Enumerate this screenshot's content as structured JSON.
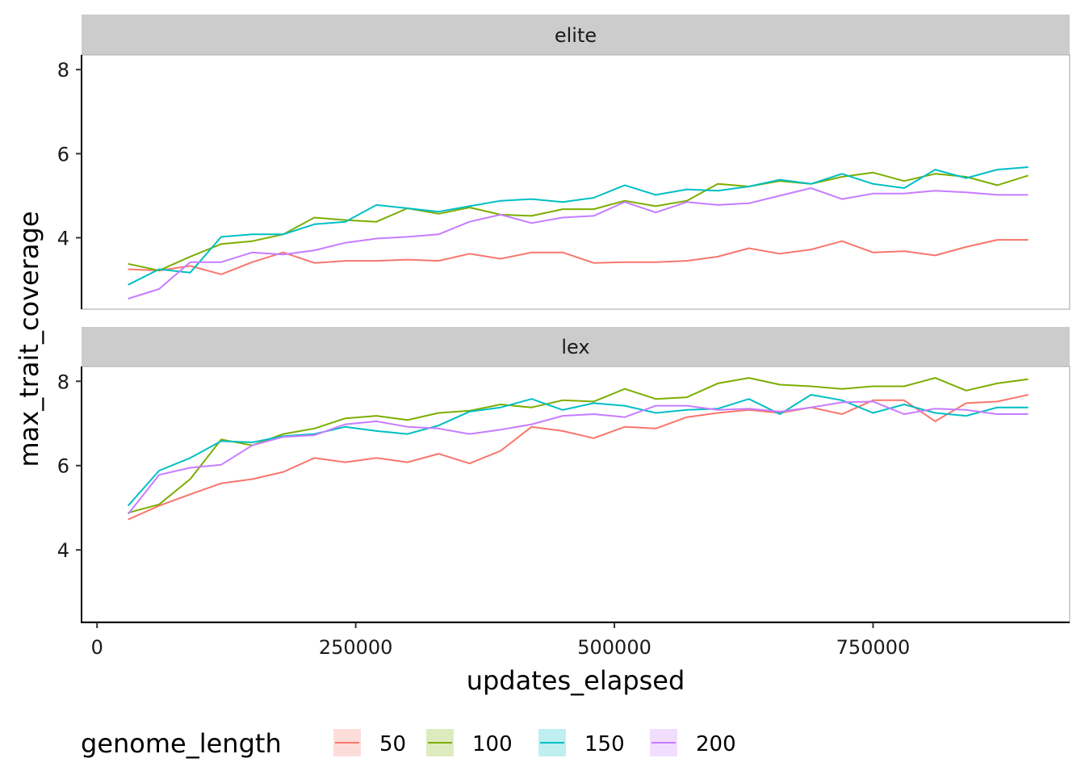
{
  "chart_data": {
    "type": "line",
    "xlabel": "updates_elapsed",
    "ylabel": "max_trait_coverage",
    "xlim": [
      -15000,
      940000
    ],
    "ylim": [
      2.3,
      8.35
    ],
    "x_ticks": [
      0,
      250000,
      500000,
      750000
    ],
    "y_ticks": [
      4,
      6,
      8
    ],
    "x": [
      30000,
      60000,
      90000,
      120000,
      150000,
      180000,
      210000,
      240000,
      270000,
      300000,
      330000,
      360000,
      390000,
      420000,
      450000,
      480000,
      510000,
      540000,
      570000,
      600000,
      630000,
      660000,
      690000,
      720000,
      750000,
      780000,
      810000,
      840000,
      870000,
      900000
    ],
    "legend": {
      "title": "genome_length",
      "position": "bottom",
      "entries": [
        {
          "label": "50",
          "color": "#F8766D"
        },
        {
          "label": "100",
          "color": "#7CAE00"
        },
        {
          "label": "150",
          "color": "#00BFC4"
        },
        {
          "label": "200",
          "color": "#C77CFF"
        }
      ]
    },
    "panels": [
      {
        "label": "elite",
        "series": [
          {
            "name": "50",
            "color": "#F8766D",
            "values": [
              3.25,
              3.22,
              3.33,
              3.13,
              3.42,
              3.65,
              3.4,
              3.45,
              3.45,
              3.48,
              3.45,
              3.62,
              3.5,
              3.65,
              3.65,
              3.4,
              3.42,
              3.42,
              3.45,
              3.55,
              3.75,
              3.62,
              3.72,
              3.92,
              3.65,
              3.68,
              3.58,
              3.78,
              3.95,
              3.95
            ]
          },
          {
            "name": "100",
            "color": "#7CAE00",
            "values": [
              3.38,
              3.22,
              3.55,
              3.85,
              3.92,
              4.08,
              4.48,
              4.42,
              4.38,
              4.7,
              4.57,
              4.72,
              4.55,
              4.52,
              4.68,
              4.68,
              4.88,
              4.75,
              4.88,
              5.28,
              5.22,
              5.35,
              5.28,
              5.45,
              5.55,
              5.35,
              5.52,
              5.45,
              5.25,
              5.48
            ]
          },
          {
            "name": "150",
            "color": "#00BFC4",
            "values": [
              2.88,
              3.25,
              3.17,
              4.02,
              4.08,
              4.08,
              4.32,
              4.38,
              4.78,
              4.7,
              4.62,
              4.75,
              4.88,
              4.92,
              4.85,
              4.95,
              5.25,
              5.02,
              5.15,
              5.12,
              5.22,
              5.38,
              5.28,
              5.52,
              5.28,
              5.18,
              5.62,
              5.42,
              5.62,
              5.68
            ]
          },
          {
            "name": "200",
            "color": "#C77CFF",
            "values": [
              2.55,
              2.78,
              3.42,
              3.42,
              3.65,
              3.6,
              3.7,
              3.88,
              3.98,
              4.02,
              4.08,
              4.38,
              4.55,
              4.35,
              4.48,
              4.52,
              4.85,
              4.6,
              4.85,
              4.78,
              4.82,
              5.0,
              5.18,
              4.92,
              5.05,
              5.05,
              5.12,
              5.08,
              5.02,
              5.02
            ]
          }
        ]
      },
      {
        "label": "lex",
        "series": [
          {
            "name": "50",
            "color": "#F8766D",
            "values": [
              4.72,
              5.05,
              5.32,
              5.58,
              5.68,
              5.85,
              6.18,
              6.08,
              6.18,
              6.08,
              6.28,
              6.05,
              6.35,
              6.92,
              6.82,
              6.65,
              6.92,
              6.88,
              7.15,
              7.25,
              7.32,
              7.25,
              7.38,
              7.22,
              7.55,
              7.55,
              7.05,
              7.48,
              7.52,
              7.68
            ]
          },
          {
            "name": "100",
            "color": "#7CAE00",
            "values": [
              4.88,
              5.08,
              5.68,
              6.62,
              6.48,
              6.75,
              6.88,
              7.12,
              7.18,
              7.08,
              7.25,
              7.3,
              7.45,
              7.38,
              7.55,
              7.52,
              7.82,
              7.58,
              7.62,
              7.95,
              8.08,
              7.92,
              7.88,
              7.82,
              7.88,
              7.88,
              8.08,
              7.78,
              7.95,
              8.05
            ]
          },
          {
            "name": "150",
            "color": "#00BFC4",
            "values": [
              5.05,
              5.88,
              6.18,
              6.58,
              6.55,
              6.7,
              6.75,
              6.92,
              6.82,
              6.75,
              6.95,
              7.28,
              7.38,
              7.58,
              7.32,
              7.48,
              7.42,
              7.25,
              7.32,
              7.35,
              7.58,
              7.22,
              7.68,
              7.55,
              7.25,
              7.45,
              7.25,
              7.18,
              7.38,
              7.38
            ]
          },
          {
            "name": "200",
            "color": "#C77CFF",
            "values": [
              4.85,
              5.78,
              5.95,
              6.02,
              6.48,
              6.68,
              6.72,
              6.98,
              7.05,
              6.92,
              6.88,
              6.75,
              6.85,
              6.98,
              7.18,
              7.22,
              7.15,
              7.42,
              7.42,
              7.32,
              7.35,
              7.28,
              7.38,
              7.5,
              7.52,
              7.22,
              7.35,
              7.32,
              7.22,
              7.22
            ]
          }
        ]
      }
    ]
  }
}
